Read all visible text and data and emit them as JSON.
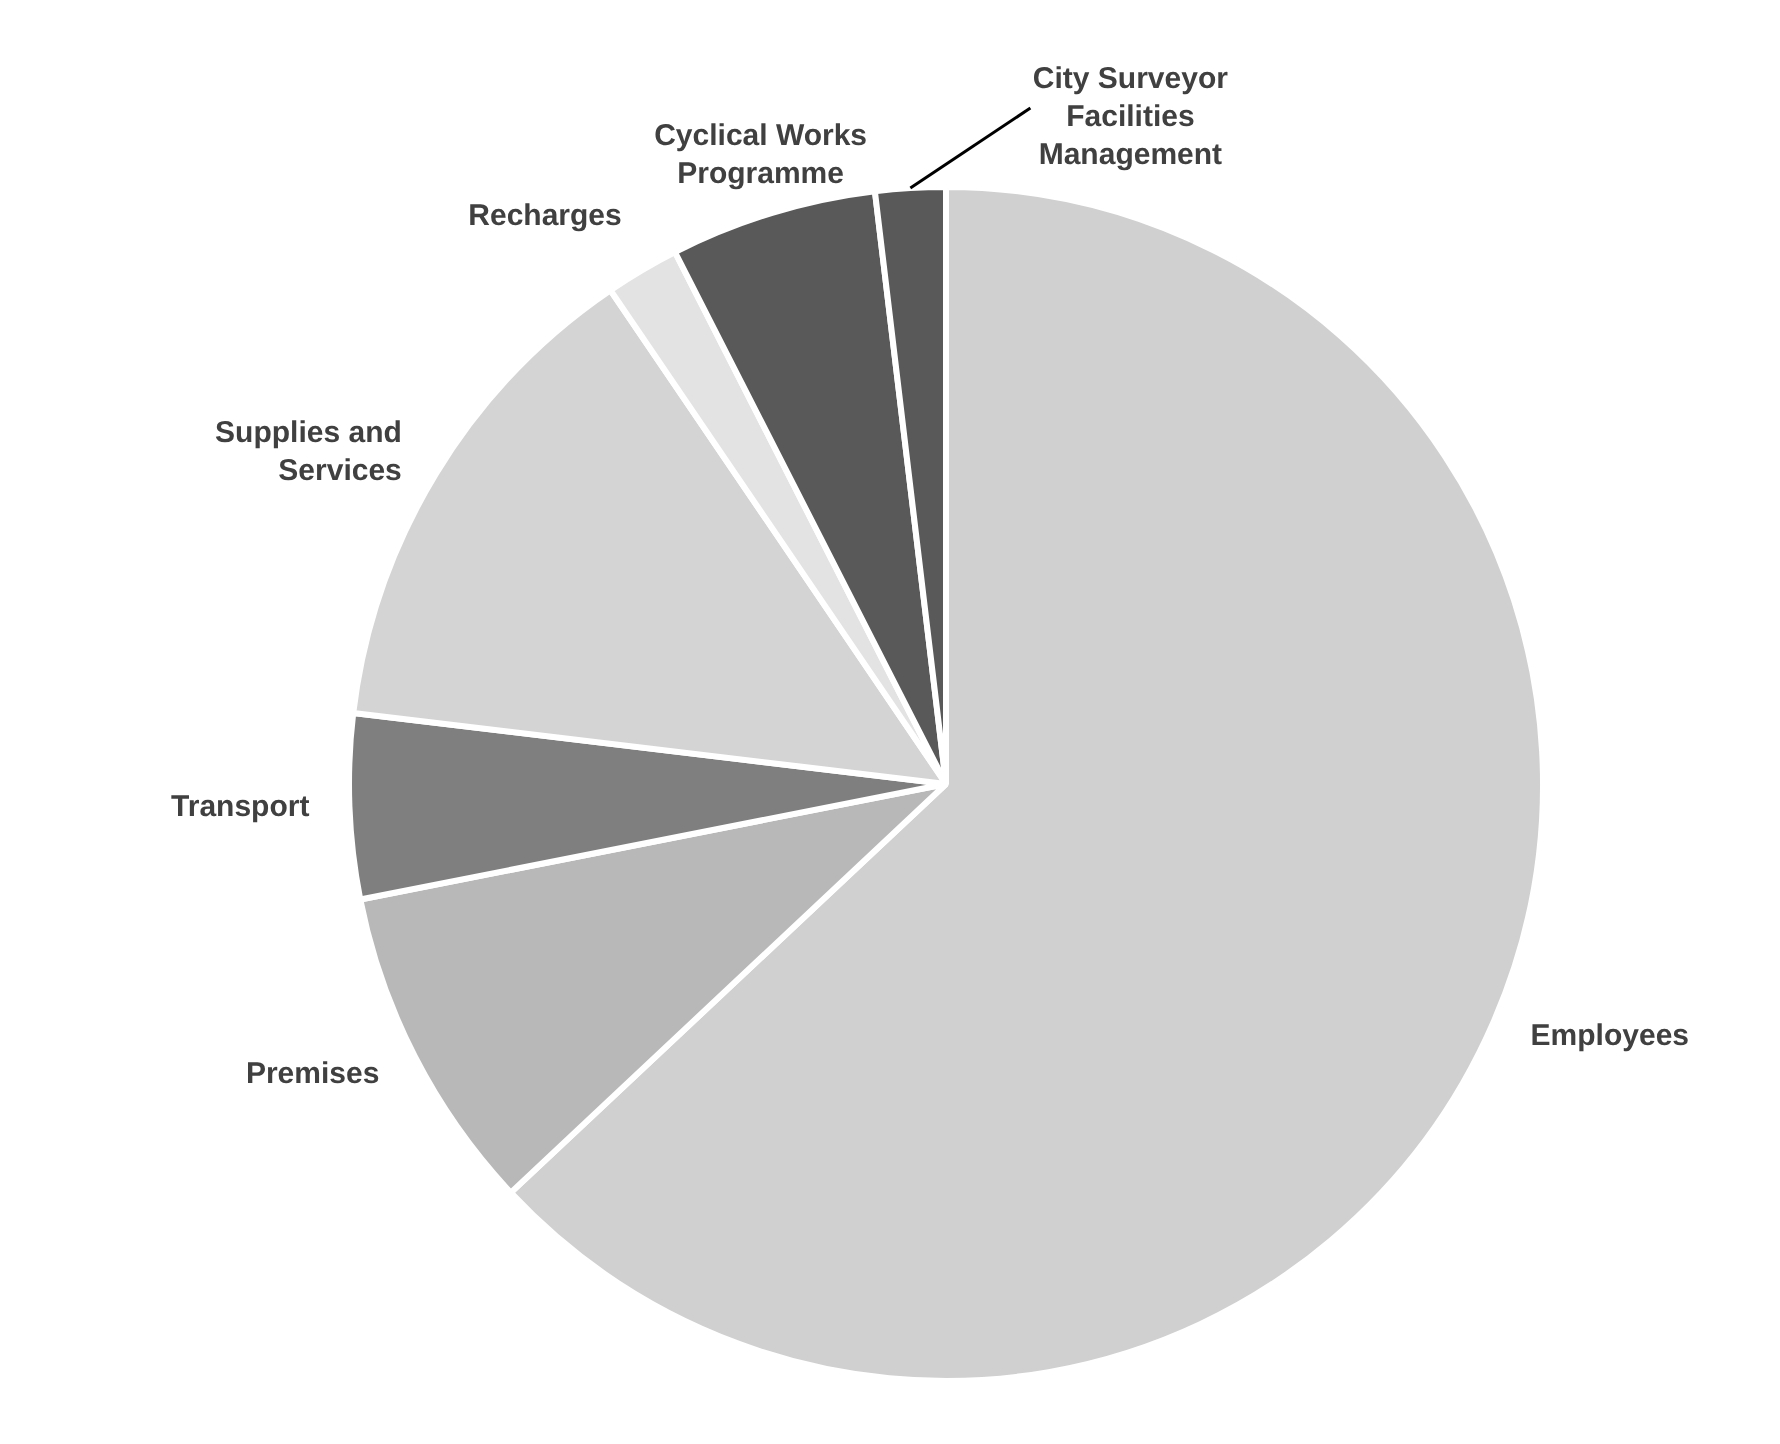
{
  "chart_data": {
    "type": "pie",
    "categories": [
      "Employees",
      "Premises",
      "Transport",
      "Supplies and Services",
      "Recharges",
      "Cyclical Works Programme",
      "City Surveyor Facilities Management"
    ],
    "values": [
      63.0,
      8.9,
      5.0,
      13.6,
      2.0,
      5.6,
      1.9
    ],
    "colors": [
      "#d0d0d0",
      "#b8b8b8",
      "#7f7f7f",
      "#d4d4d4",
      "#e3e3e3",
      "#595959",
      "#595959"
    ],
    "legend": false
  }
}
